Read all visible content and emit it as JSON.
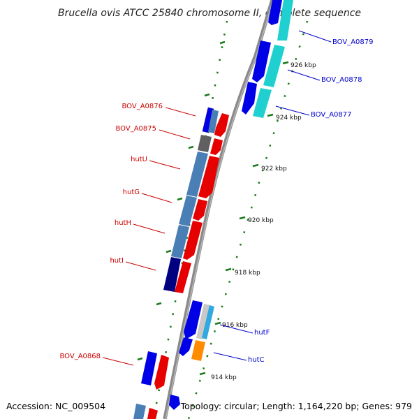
{
  "title": "Brucella ovis ATCC 25840 chromosome II, complete sequence",
  "footer": {
    "accession": "Accession: NC_009504",
    "summary": "Topology: circular; Length: 1,164,220 bp; Genes: 979"
  },
  "colors": {
    "backbone": "#888888",
    "forward_cds": "#e60000",
    "reverse_cds": "#0000e6",
    "steel": "#4a7fb5",
    "navy": "#000080",
    "gray": "#606060",
    "cyan": "#20d0d0",
    "sky": "#30a8e0",
    "orange": "#ff8c00",
    "light_gray": "#c8c8c8",
    "tick": "#1a7a1a",
    "label_red": "#cc0000",
    "label_blue": "#0000cc"
  },
  "scale": [
    {
      "label": "914 kbp"
    },
    {
      "label": "916 kbp"
    },
    {
      "label": "918 kbp"
    },
    {
      "label": "920 kbp"
    },
    {
      "label": "922 kbp"
    },
    {
      "label": "924 kbp"
    },
    {
      "label": "926 kbp"
    }
  ],
  "labels": [
    {
      "text": "BOV_A0879",
      "color": "blue"
    },
    {
      "text": "BOV_A0878",
      "color": "blue"
    },
    {
      "text": "BOV_A0877",
      "color": "blue"
    },
    {
      "text": "BOV_A0876",
      "color": "red"
    },
    {
      "text": "BOV_A0875",
      "color": "red"
    },
    {
      "text": "hutU",
      "color": "red"
    },
    {
      "text": "hutG",
      "color": "red"
    },
    {
      "text": "hutH",
      "color": "red"
    },
    {
      "text": "hutI",
      "color": "red"
    },
    {
      "text": "hutF",
      "color": "blue"
    },
    {
      "text": "hutC",
      "color": "blue"
    },
    {
      "text": "BOV_A0868",
      "color": "red"
    }
  ]
}
